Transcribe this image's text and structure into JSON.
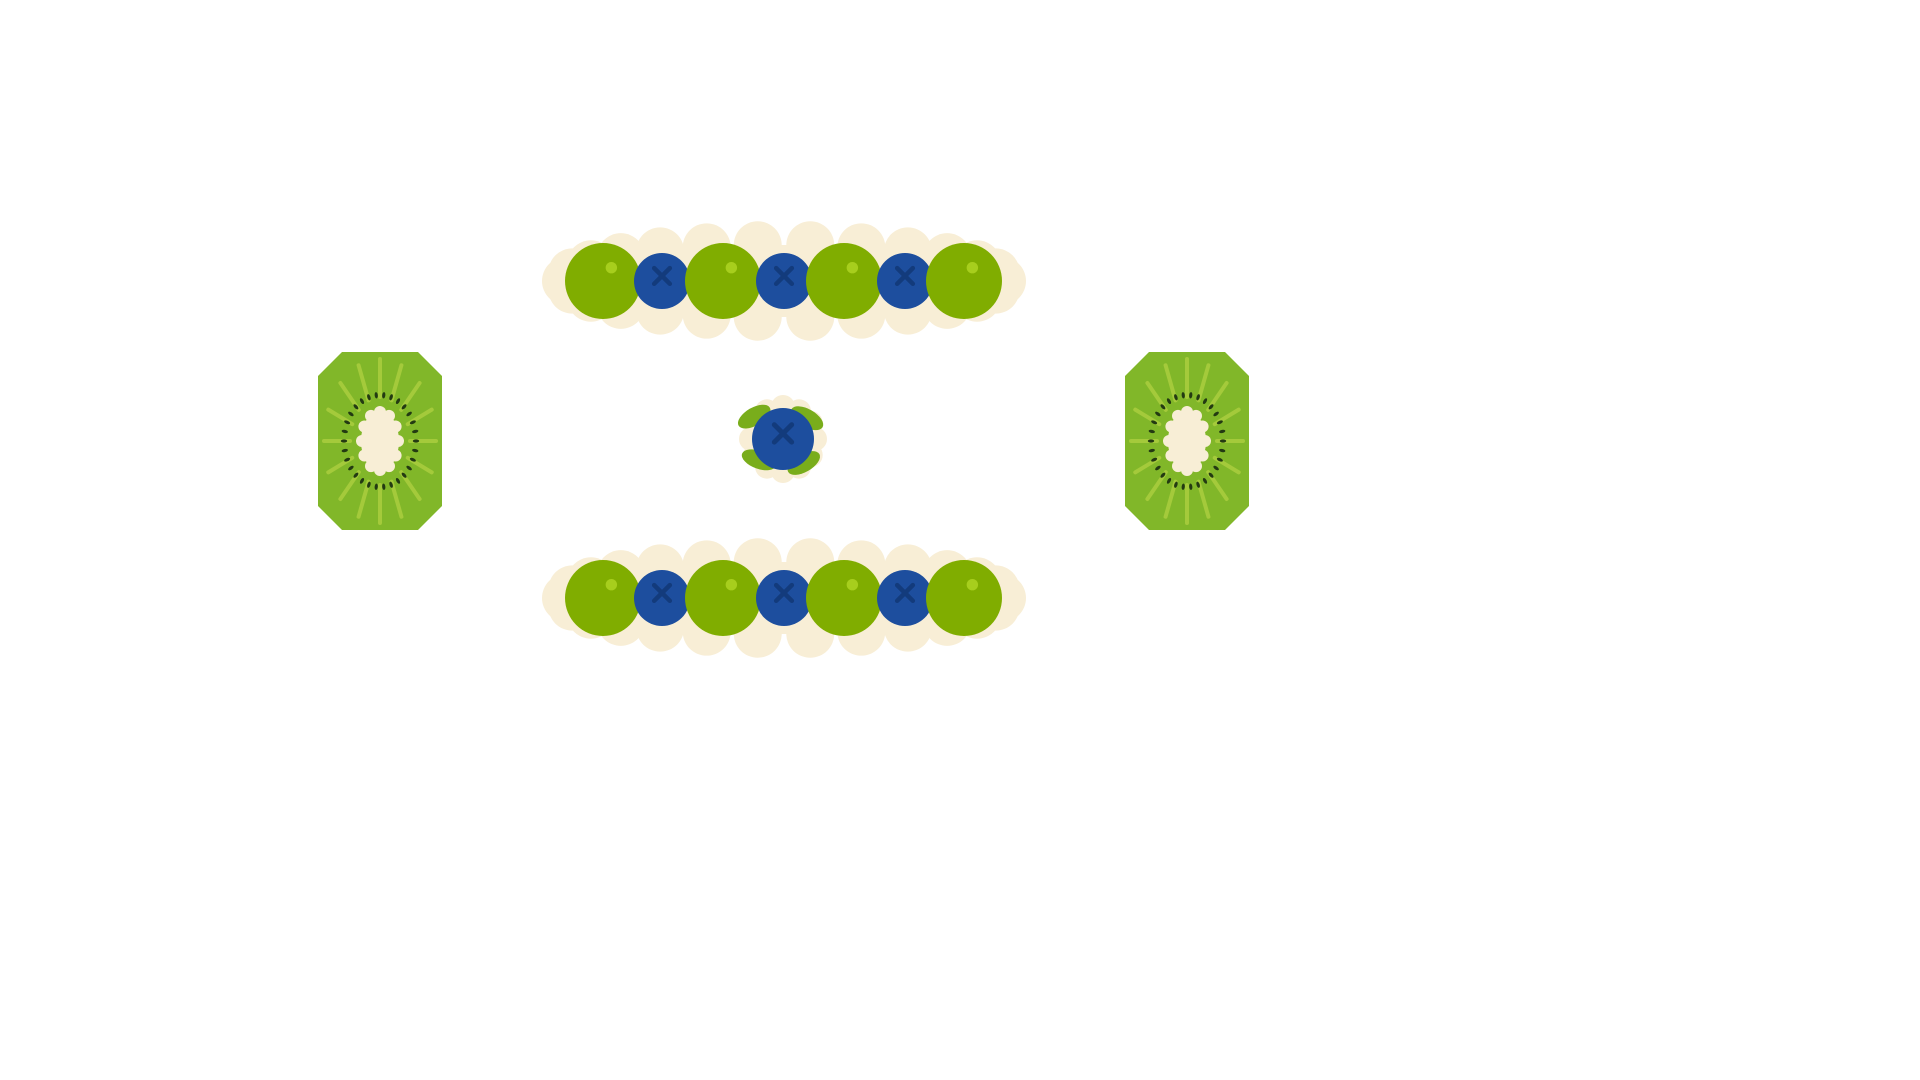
{
  "scene": {
    "background": "#ffffff",
    "colors": {
      "cream": "#f8eed6",
      "grape_green": "#80ad00",
      "grape_highlight": "#a7ce1d",
      "blueberry_blue": "#1d4e9e",
      "blueberry_dark": "#133b7c",
      "kiwi_skin": "#81b729",
      "kiwi_ray": "#a4ca3b",
      "kiwi_seed": "#233a12",
      "leaf_green": "#79ad1b"
    },
    "rows": [
      {
        "name": "fruit-row-top",
        "items": [
          "grape",
          "blueberry",
          "grape",
          "blueberry",
          "grape",
          "blueberry",
          "grape"
        ]
      },
      {
        "name": "fruit-row-bottom",
        "items": [
          "grape",
          "blueberry",
          "grape",
          "blueberry",
          "grape",
          "blueberry",
          "grape"
        ]
      }
    ],
    "kiwi_slices": [
      {
        "name": "kiwi-slice-left"
      },
      {
        "name": "kiwi-slice-right"
      }
    ],
    "centerpiece": {
      "name": "blueberry-centerpiece",
      "leaves": 4
    }
  }
}
